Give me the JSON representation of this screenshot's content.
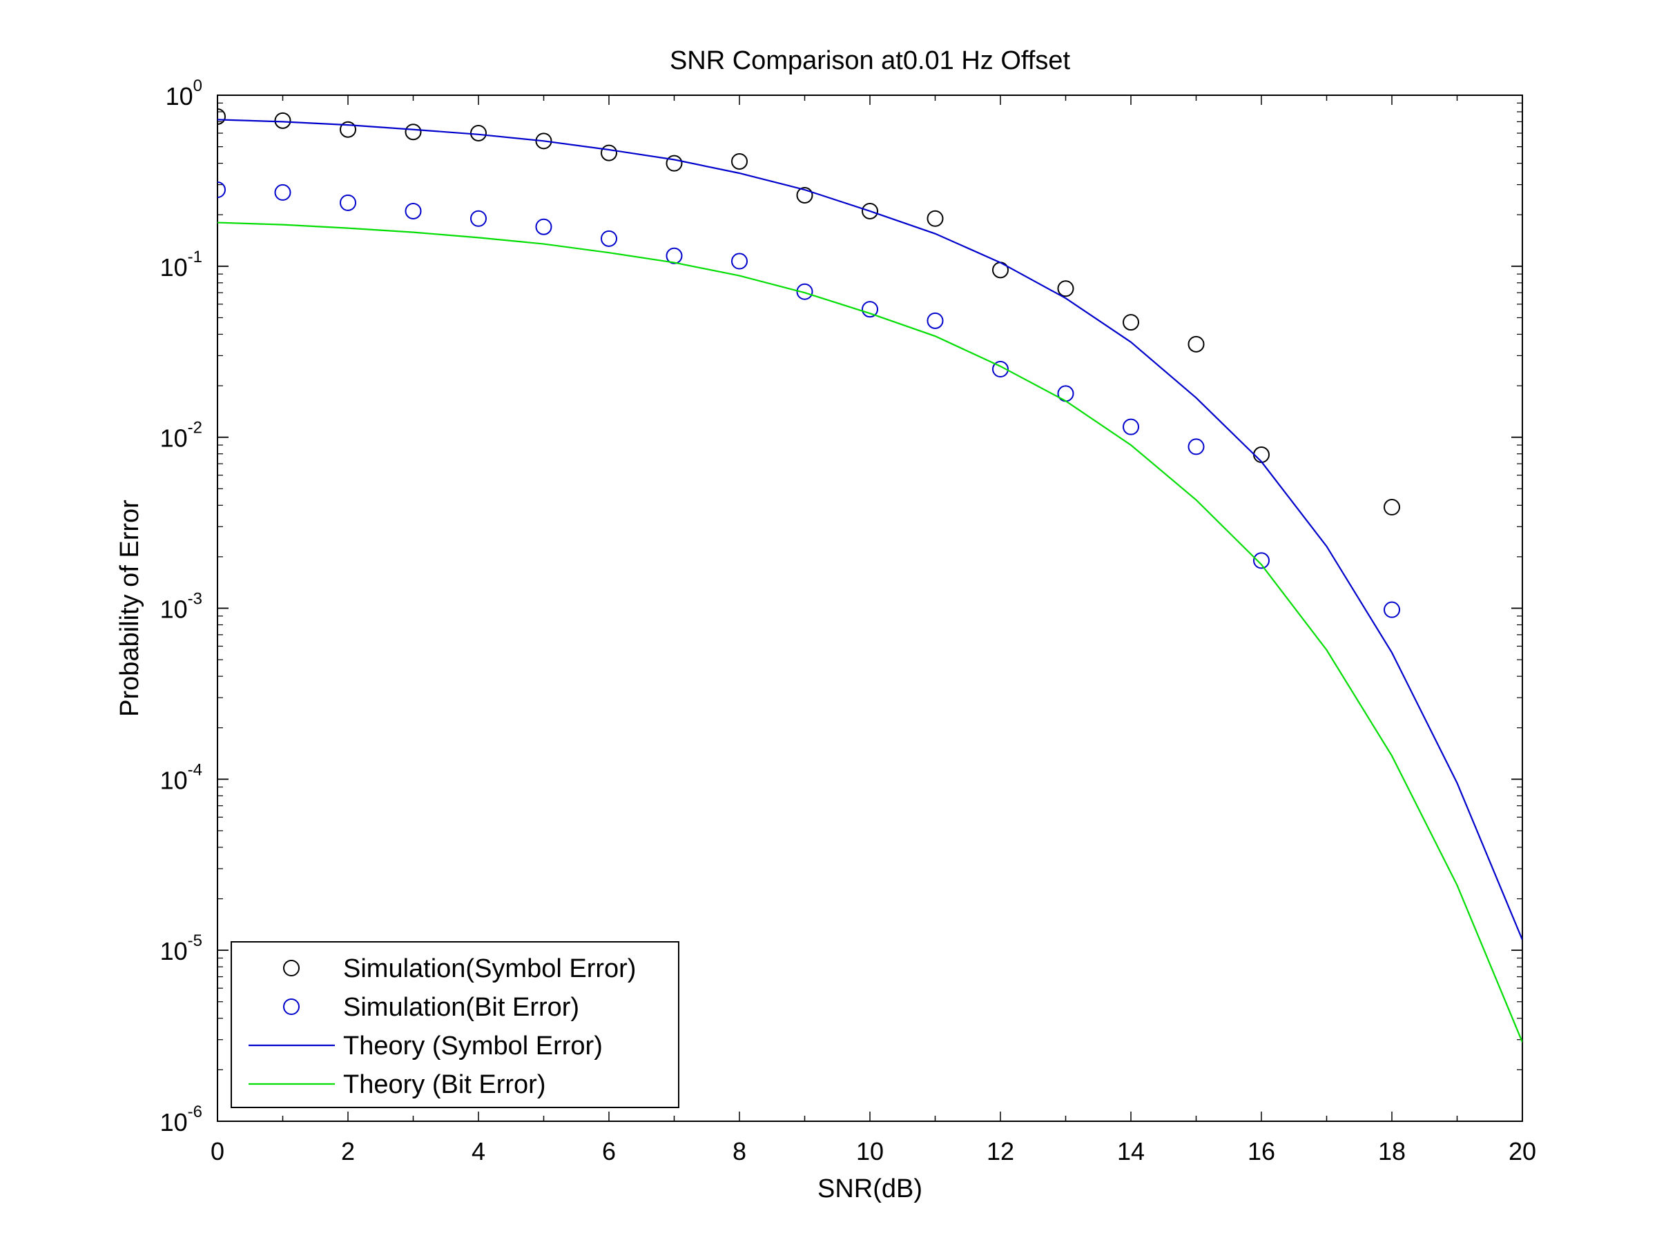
{
  "chart_data": {
    "type": "line",
    "title": "SNR Comparison at0.01 Hz Offset",
    "xlabel": "SNR(dB)",
    "ylabel": "Probability of Error",
    "xlim": [
      0,
      20
    ],
    "ylim": [
      1e-06,
      1
    ],
    "yscale": "log",
    "x_ticks": [
      "0",
      "2",
      "4",
      "6",
      "8",
      "10",
      "12",
      "14",
      "16",
      "18",
      "20"
    ],
    "y_ticks": [
      {
        "base": "10",
        "exp": "0",
        "value": 1
      },
      {
        "base": "10",
        "exp": "-1",
        "value": 0.1
      },
      {
        "base": "10",
        "exp": "-2",
        "value": 0.01
      },
      {
        "base": "10",
        "exp": "-3",
        "value": 0.001
      },
      {
        "base": "10",
        "exp": "-4",
        "value": 0.0001
      },
      {
        "base": "10",
        "exp": "-5",
        "value": 1e-05
      },
      {
        "base": "10",
        "exp": "-6",
        "value": 1e-06
      }
    ],
    "grid": false,
    "legend_position": "bottom-left",
    "series": [
      {
        "name": "Simulation(Symbol Error)",
        "kind": "scatter",
        "marker": "circle",
        "color": "#000000",
        "x": [
          0,
          1,
          2,
          3,
          4,
          5,
          6,
          7,
          8,
          9,
          10,
          11,
          12,
          13,
          14,
          15,
          16,
          18
        ],
        "y": [
          0.75,
          0.71,
          0.63,
          0.61,
          0.6,
          0.54,
          0.46,
          0.4,
          0.41,
          0.26,
          0.21,
          0.19,
          0.095,
          0.074,
          0.047,
          0.035,
          0.0079,
          0.0039
        ]
      },
      {
        "name": "Simulation(Bit Error)",
        "kind": "scatter",
        "marker": "circle",
        "color": "#0000cc",
        "x": [
          0,
          1,
          2,
          3,
          4,
          5,
          6,
          7,
          8,
          9,
          10,
          11,
          12,
          13,
          14,
          15,
          16,
          18
        ],
        "y": [
          0.28,
          0.27,
          0.235,
          0.21,
          0.19,
          0.17,
          0.145,
          0.115,
          0.107,
          0.071,
          0.056,
          0.048,
          0.025,
          0.018,
          0.0115,
          0.0088,
          0.0019,
          0.00098
        ]
      },
      {
        "name": "Theory (Symbol Error)",
        "kind": "line",
        "color": "#0000cc",
        "x": [
          0,
          1,
          2,
          3,
          4,
          5,
          6,
          7,
          8,
          9,
          10,
          11,
          12,
          13,
          14,
          15,
          16,
          17,
          18,
          19,
          20
        ],
        "y": [
          0.72,
          0.7,
          0.67,
          0.63,
          0.59,
          0.54,
          0.48,
          0.42,
          0.35,
          0.28,
          0.21,
          0.155,
          0.105,
          0.065,
          0.036,
          0.017,
          0.0072,
          0.0023,
          0.00055,
          9.5e-05,
          1.15e-05
        ]
      },
      {
        "name": "Theory (Bit Error)",
        "kind": "line",
        "color": "#00dd00",
        "x": [
          0,
          1,
          2,
          3,
          4,
          5,
          6,
          7,
          8,
          9,
          10,
          11,
          12,
          13,
          14,
          15,
          16,
          17,
          18,
          19,
          20
        ],
        "y": [
          0.18,
          0.175,
          0.167,
          0.158,
          0.147,
          0.135,
          0.12,
          0.105,
          0.088,
          0.07,
          0.053,
          0.039,
          0.026,
          0.0163,
          0.009,
          0.0043,
          0.0018,
          0.00057,
          0.000137,
          2.4e-05,
          2.9e-06
        ]
      }
    ]
  }
}
